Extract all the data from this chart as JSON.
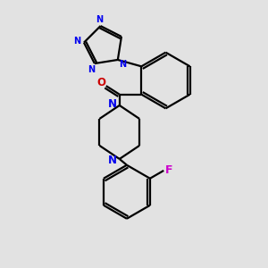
{
  "background_color": "#e2e2e2",
  "bond_color": "#000000",
  "N_color": "#0000ee",
  "O_color": "#cc0000",
  "F_color": "#cc00cc",
  "line_width": 1.6,
  "fig_size": [
    3.0,
    3.0
  ],
  "dpi": 100,
  "xlim": [
    -4.5,
    4.5
  ],
  "ylim": [
    -5.5,
    5.5
  ]
}
